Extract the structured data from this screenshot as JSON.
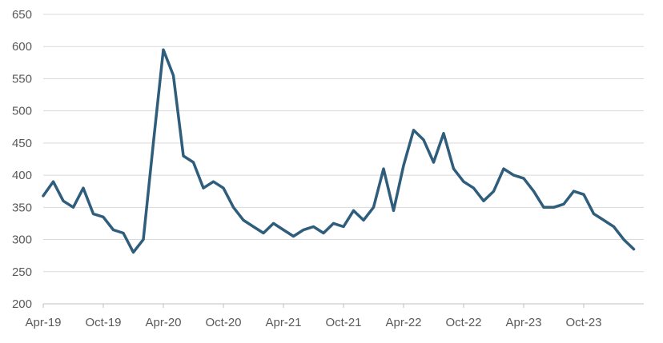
{
  "chart_data": {
    "type": "line",
    "title": "",
    "xlabel": "",
    "ylabel": "",
    "ylim": [
      200,
      650
    ],
    "yticks": [
      200,
      250,
      300,
      350,
      400,
      450,
      500,
      550,
      600,
      650
    ],
    "xtick_labels": [
      "Apr-19",
      "Oct-19",
      "Apr-20",
      "Oct-20",
      "Apr-21",
      "Oct-21",
      "Apr-22",
      "Oct-22",
      "Apr-23",
      "Oct-23"
    ],
    "x_range": [
      "2019-04",
      "2024-03"
    ],
    "grid": "horizontal",
    "legend": "none",
    "line_color": "#2f5d7c",
    "series": [
      {
        "x": [
          "2019-04",
          "2019-05",
          "2019-06",
          "2019-07",
          "2019-08",
          "2019-09",
          "2019-10",
          "2019-11",
          "2019-12",
          "2020-01",
          "2020-02",
          "2020-03",
          "2020-04",
          "2020-05",
          "2020-06",
          "2020-07",
          "2020-08",
          "2020-09",
          "2020-10",
          "2020-11",
          "2020-12",
          "2021-01",
          "2021-02",
          "2021-03",
          "2021-04",
          "2021-05",
          "2021-06",
          "2021-07",
          "2021-08",
          "2021-09",
          "2021-10",
          "2021-11",
          "2021-12",
          "2022-01",
          "2022-02",
          "2022-03",
          "2022-04",
          "2022-05",
          "2022-06",
          "2022-07",
          "2022-08",
          "2022-09",
          "2022-10",
          "2022-11",
          "2022-12",
          "2023-01",
          "2023-02",
          "2023-03",
          "2023-04",
          "2023-05",
          "2023-06",
          "2023-07",
          "2023-08",
          "2023-09",
          "2023-10",
          "2023-11",
          "2023-12",
          "2024-01",
          "2024-02",
          "2024-03"
        ],
        "values": [
          368,
          390,
          360,
          350,
          380,
          340,
          335,
          315,
          310,
          280,
          300,
          450,
          595,
          555,
          430,
          420,
          380,
          390,
          380,
          350,
          330,
          320,
          310,
          325,
          315,
          305,
          315,
          320,
          310,
          325,
          320,
          345,
          330,
          350,
          410,
          345,
          415,
          470,
          455,
          420,
          465,
          410,
          390,
          380,
          360,
          375,
          410,
          400,
          395,
          375,
          350,
          350,
          355,
          375,
          370,
          340,
          330,
          320,
          300,
          285
        ]
      }
    ]
  }
}
